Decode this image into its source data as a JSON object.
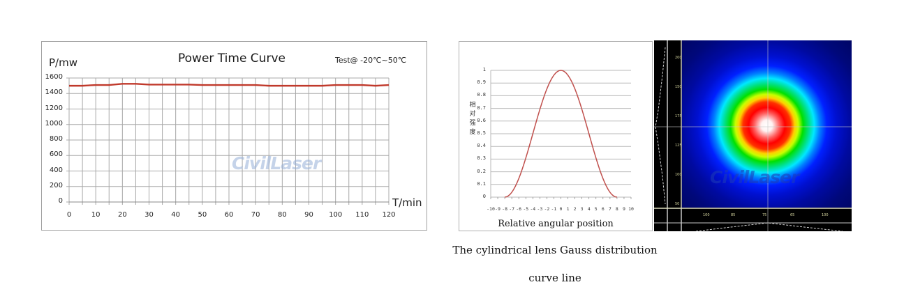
{
  "chart_data": [
    {
      "type": "line",
      "title": "Power Time Curve",
      "annotation": "Test@ -20℃~50℃",
      "xlabel": "T/min",
      "ylabel": "P/mw",
      "x": [
        0,
        5,
        10,
        15,
        20,
        25,
        30,
        35,
        40,
        45,
        50,
        55,
        60,
        65,
        70,
        75,
        80,
        85,
        90,
        95,
        100,
        105,
        110,
        115,
        120
      ],
      "series": [
        {
          "name": "Power",
          "color": "#c0392b",
          "values": [
            1500,
            1500,
            1510,
            1510,
            1525,
            1525,
            1515,
            1515,
            1515,
            1515,
            1510,
            1510,
            1510,
            1510,
            1510,
            1500,
            1500,
            1500,
            1500,
            1500,
            1510,
            1510,
            1510,
            1500,
            1510
          ]
        }
      ],
      "xticks": [
        0,
        10,
        20,
        30,
        40,
        50,
        60,
        70,
        80,
        90,
        100,
        110,
        120
      ],
      "yticks": [
        0,
        200,
        400,
        600,
        800,
        1000,
        1200,
        1400,
        1600
      ],
      "xlim": [
        0,
        120
      ],
      "ylim": [
        0,
        1600
      ],
      "grid": true,
      "watermark": "CivilLaser"
    },
    {
      "type": "line",
      "title": "",
      "xlabel": "Relative angular position",
      "ylabel": "相对强度",
      "x": [
        -8,
        -7,
        -6,
        -5,
        -4,
        -3,
        -2,
        -1,
        0,
        1,
        2,
        3,
        4,
        5,
        6,
        7,
        8
      ],
      "series": [
        {
          "name": "Relative intensity",
          "color": "#c0504d",
          "values": [
            0,
            0.09,
            0.2,
            0.31,
            0.44,
            0.6,
            0.76,
            0.87,
            0.94,
            1.0,
            0.95,
            0.88,
            0.76,
            0.6,
            0.44,
            0.31,
            0.2,
            0.09,
            0
          ]
        }
      ],
      "x_dense": [
        -8,
        -7,
        -6,
        -5,
        -4,
        -3,
        -2.5,
        -2,
        -1,
        0,
        1,
        2,
        2.5,
        3,
        4,
        5,
        6,
        7,
        8
      ],
      "xticks": [
        -10,
        -9,
        -8,
        -7,
        -6,
        -5,
        -4,
        -3,
        -2,
        -1,
        0,
        1,
        2,
        3,
        4,
        5,
        6,
        7,
        8,
        9,
        10
      ],
      "yticks": [
        0,
        0.1,
        0.2,
        0.3,
        0.4,
        0.5,
        0.6,
        0.7,
        0.8,
        0.9,
        1
      ],
      "xlim": [
        -10,
        10
      ],
      "ylim": [
        0,
        1
      ],
      "grid": "horizontal"
    },
    {
      "type": "heatmap",
      "title": "Beam profile",
      "description": "Circular Gaussian intensity spot with white center, red, yellow, green, cyan, blue rings on dark blue background; crosshair through center",
      "watermark": "CivilLaser"
    }
  ],
  "power_chart": {
    "title": "Power Time Curve",
    "test_note": "Test@ -20℃~50℃",
    "ylabel": "P/mw",
    "xlabel": "T/min",
    "yticks": [
      "1600",
      "1400",
      "1200",
      "1000",
      "800",
      "600",
      "400",
      "200",
      "0"
    ],
    "xticks": [
      "0",
      "10",
      "20",
      "30",
      "40",
      "50",
      "60",
      "70",
      "80",
      "90",
      "100",
      "110",
      "120"
    ],
    "watermark": "CivilLaser",
    "line_color": "#c0392b"
  },
  "gauss_chart": {
    "ylabel_chars": [
      "相",
      "对",
      "强",
      "度"
    ],
    "xlabel": "Relative angular position",
    "yticks": [
      "1",
      "0.9",
      "0.8",
      "0.7",
      "0.6",
      "0.5",
      "0.4",
      "0.3",
      "0.2",
      "0.1",
      "0"
    ],
    "xticks": [
      "-10",
      "-9",
      "-8",
      "-7",
      "-6",
      "-5",
      "-4",
      "-3",
      "-2",
      "-1",
      "0",
      "1",
      "2",
      "3",
      "4",
      "5",
      "6",
      "7",
      "8",
      "9",
      "10"
    ],
    "line_color": "#c0504d"
  },
  "beam_profile": {
    "watermark": "CivilLaser"
  },
  "caption": {
    "line1": "The cylindrical lens Gauss distribution",
    "line2": "curve line"
  }
}
